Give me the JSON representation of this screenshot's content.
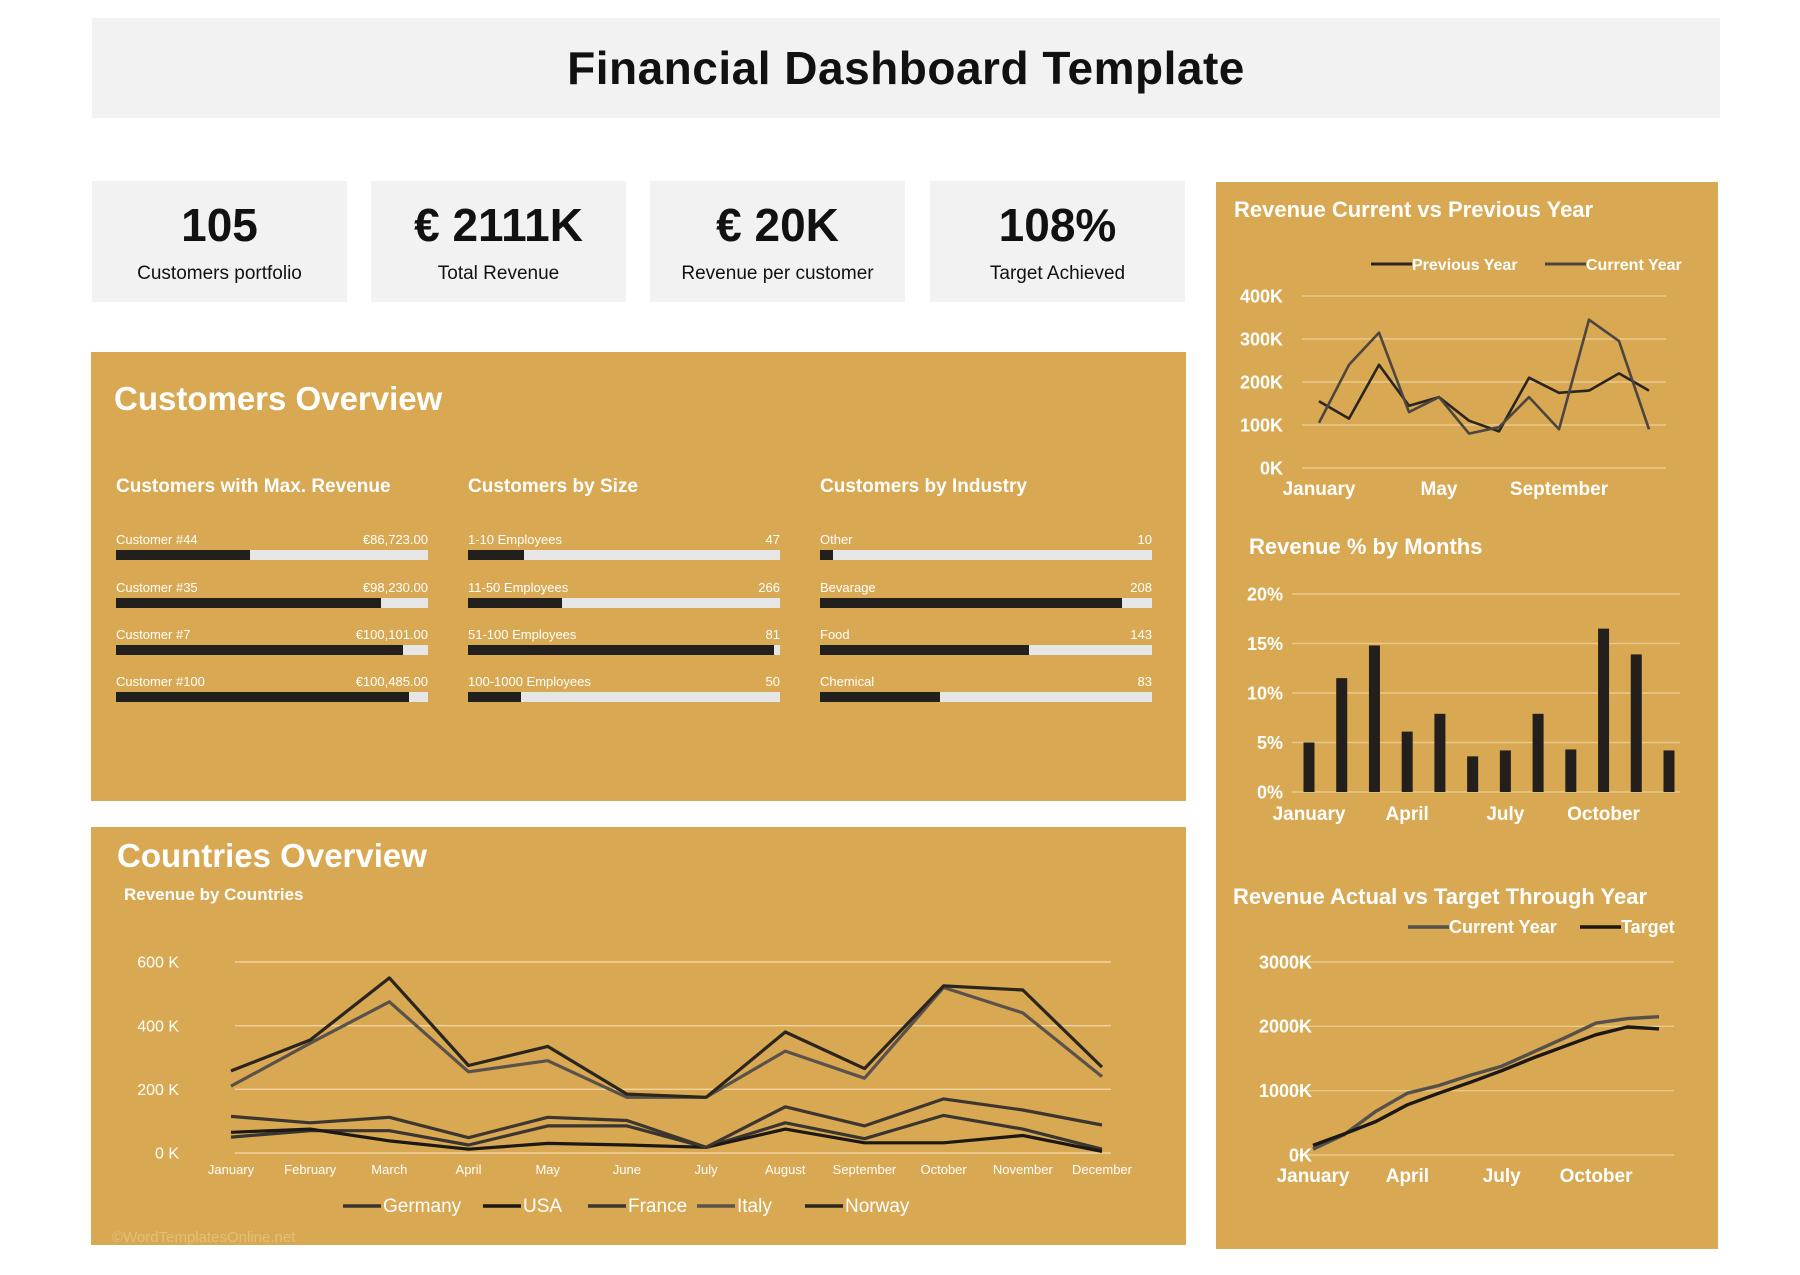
{
  "header": {
    "title": "Financial Dashboard Template"
  },
  "kpis": [
    {
      "value": "105",
      "label": "Customers portfolio"
    },
    {
      "value": "€ 2111K",
      "label": "Total Revenue"
    },
    {
      "value": "€ 20K",
      "label": "Revenue per customer"
    },
    {
      "value": "108%",
      "label": "Target Achieved"
    }
  ],
  "colors": {
    "panel": "#d9a852",
    "kpi_bg": "#f2f2f2",
    "bar_dark": "#231f1c",
    "bar_track": "#e6e6e6"
  },
  "customers_overview": {
    "title": "Customers Overview",
    "groups": [
      {
        "title": "Customers with Max. Revenue",
        "items": [
          {
            "label": "Customer #44",
            "value": "€86,723.00",
            "fraction": 0.43
          },
          {
            "label": "Customer #35",
            "value": "€98,230.00",
            "fraction": 0.85
          },
          {
            "label": "Customer #7",
            "value": "€100,101.00",
            "fraction": 0.92
          },
          {
            "label": "Customer #100",
            "value": "€100,485.00",
            "fraction": 0.94
          }
        ]
      },
      {
        "title": "Customers by Size",
        "items": [
          {
            "label": "1-10 Employees",
            "value": "47",
            "fraction": 0.18
          },
          {
            "label": "11-50 Employees",
            "value": "266",
            "fraction": 0.3
          },
          {
            "label": "51-100 Employees",
            "value": "81",
            "fraction": 0.98
          },
          {
            "label": "100-1000 Employees",
            "value": "50",
            "fraction": 0.17
          }
        ]
      },
      {
        "title": "Customers by Industry",
        "items": [
          {
            "label": "Other",
            "value": "10",
            "fraction": 0.04
          },
          {
            "label": "Bevarage",
            "value": "208",
            "fraction": 0.91
          },
          {
            "label": "Food",
            "value": "143",
            "fraction": 0.63
          },
          {
            "label": "Chemical",
            "value": "83",
            "fraction": 0.36
          }
        ]
      }
    ]
  },
  "countries_overview": {
    "title": "Countries Overview",
    "subtitle": "Revenue by Countries"
  },
  "watermark": "©WordTemplatesOnline.net",
  "chart_data": [
    {
      "id": "revenue_by_countries",
      "type": "line",
      "title": "Revenue by Countries",
      "categories": [
        "January",
        "February",
        "March",
        "April",
        "May",
        "June",
        "July",
        "August",
        "September",
        "October",
        "November",
        "December"
      ],
      "y_ticks": [
        "0 K",
        "200 K",
        "400 K",
        "600 K"
      ],
      "ylim": [
        0,
        600
      ],
      "grid": true,
      "legend": "bottom",
      "series": [
        {
          "name": "Germany",
          "color": "#3a3530",
          "values": [
            50,
            70,
            70,
            25,
            85,
            85,
            18,
            95,
            45,
            118,
            75,
            12
          ]
        },
        {
          "name": "USA",
          "color": "#1b1815",
          "values": [
            65,
            75,
            38,
            12,
            30,
            25,
            18,
            75,
            32,
            32,
            55,
            5
          ]
        },
        {
          "name": "France",
          "color": "#3d3630",
          "values": [
            115,
            95,
            112,
            48,
            112,
            102,
            18,
            145,
            85,
            170,
            135,
            88
          ]
        },
        {
          "name": "Italy",
          "color": "#5a524a",
          "values": [
            210,
            345,
            475,
            255,
            290,
            175,
            175,
            320,
            235,
            520,
            440,
            240
          ]
        },
        {
          "name": "Norway",
          "color": "#2b2520",
          "values": [
            258,
            355,
            550,
            275,
            335,
            185,
            175,
            380,
            265,
            525,
            512,
            270
          ]
        }
      ]
    },
    {
      "id": "revenue_current_vs_previous",
      "type": "line",
      "title": "Revenue Current vs Previous Year",
      "x_labels": [
        "January",
        "May",
        "September"
      ],
      "categories": [
        "January",
        "February",
        "March",
        "April",
        "May",
        "June",
        "July",
        "August",
        "September",
        "October",
        "November",
        "December"
      ],
      "y_ticks": [
        "0K",
        "100K",
        "200K",
        "300K",
        "400K"
      ],
      "ylim": [
        0,
        400
      ],
      "grid": true,
      "legend": "top-right",
      "series": [
        {
          "name": "Previous Year",
          "color": "#2a2520",
          "values": [
            155,
            115,
            240,
            145,
            165,
            110,
            85,
            210,
            175,
            180,
            220,
            180
          ]
        },
        {
          "name": "Current Year",
          "color": "#4d4640",
          "values": [
            105,
            240,
            315,
            130,
            165,
            80,
            95,
            165,
            90,
            345,
            295,
            90
          ]
        }
      ]
    },
    {
      "id": "revenue_pct_by_months",
      "type": "bar",
      "title": "Revenue % by Months",
      "x_labels": [
        "January",
        "April",
        "July",
        "October"
      ],
      "categories": [
        "January",
        "February",
        "March",
        "April",
        "May",
        "June",
        "July",
        "August",
        "September",
        "October",
        "November",
        "December"
      ],
      "values": [
        5.0,
        11.5,
        14.8,
        6.1,
        7.9,
        3.6,
        4.2,
        7.9,
        4.3,
        16.5,
        13.9,
        4.2
      ],
      "y_ticks": [
        "0%",
        "5%",
        "10%",
        "15%",
        "20%"
      ],
      "ylim": [
        0,
        20
      ],
      "grid": true
    },
    {
      "id": "revenue_actual_vs_target",
      "type": "line",
      "title": "Revenue Actual vs Target Through Year",
      "x_labels": [
        "January",
        "April",
        "July",
        "October"
      ],
      "categories": [
        "January",
        "February",
        "March",
        "April",
        "May",
        "June",
        "July",
        "August",
        "September",
        "October",
        "November",
        "December"
      ],
      "y_ticks": [
        "0K",
        "1000K",
        "2000K",
        "3000K"
      ],
      "ylim": [
        0,
        3000
      ],
      "grid": true,
      "legend": "top-right",
      "series": [
        {
          "name": "Current Year",
          "color": "#55504a",
          "values": [
            90,
            320,
            680,
            960,
            1080,
            1240,
            1380,
            1600,
            1820,
            2050,
            2120,
            2150
          ]
        },
        {
          "name": "Target",
          "color": "#1b1815",
          "values": [
            150,
            330,
            520,
            780,
            960,
            1130,
            1310,
            1510,
            1690,
            1870,
            1990,
            1960
          ]
        }
      ]
    }
  ]
}
